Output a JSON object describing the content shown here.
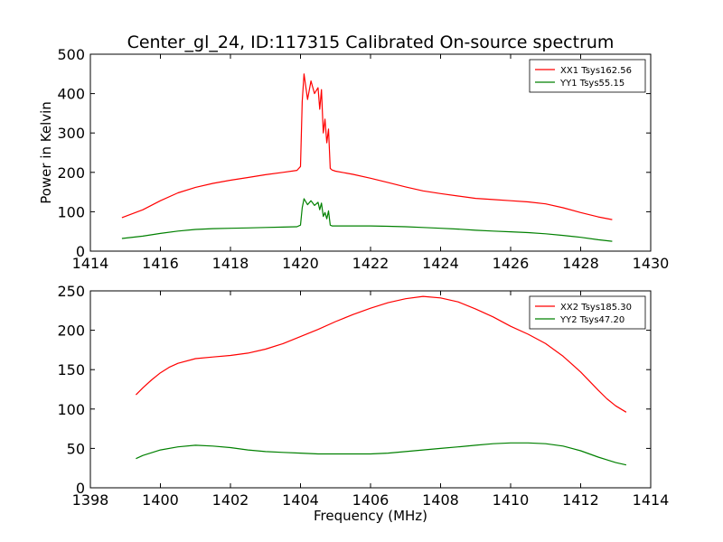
{
  "figure": {
    "title": "Center_gl_24, ID:117315 Calibrated On-source spectrum"
  },
  "chart_data": [
    {
      "type": "line",
      "title": "Center_gl_24, ID:117315 Calibrated On-source spectrum",
      "xlabel": "",
      "ylabel": "Power in Kelvin",
      "xlim": [
        1414,
        1430
      ],
      "ylim": [
        0,
        500
      ],
      "xticks": [
        "1414",
        "1416",
        "1418",
        "1420",
        "1422",
        "1424",
        "1426",
        "1428",
        "1430"
      ],
      "yticks": [
        "0",
        "100",
        "200",
        "300",
        "400",
        "500"
      ],
      "grid": false,
      "legend_position": "top-right",
      "series": [
        {
          "name": "XX1 Tsys162.56",
          "color": "#ff0000",
          "x": [
            1414.9,
            1415.5,
            1416.0,
            1416.5,
            1417.0,
            1417.5,
            1418.0,
            1418.5,
            1419.0,
            1419.5,
            1419.9,
            1420.0,
            1420.05,
            1420.1,
            1420.2,
            1420.3,
            1420.4,
            1420.5,
            1420.55,
            1420.6,
            1420.65,
            1420.7,
            1420.75,
            1420.8,
            1420.85,
            1420.9,
            1421.0,
            1421.5,
            1422.0,
            1422.5,
            1423.0,
            1423.5,
            1424.0,
            1424.5,
            1425.0,
            1425.5,
            1426.0,
            1426.5,
            1427.0,
            1427.5,
            1428.0,
            1428.5,
            1428.9
          ],
          "y": [
            85,
            105,
            128,
            148,
            162,
            172,
            180,
            187,
            194,
            200,
            205,
            215,
            380,
            450,
            385,
            432,
            400,
            415,
            360,
            410,
            300,
            335,
            275,
            310,
            210,
            206,
            203,
            195,
            185,
            174,
            163,
            153,
            146,
            140,
            134,
            131,
            128,
            125,
            120,
            110,
            98,
            87,
            80
          ]
        },
        {
          "name": "YY1 Tsys55.15",
          "color": "#008000",
          "x": [
            1414.9,
            1415.5,
            1416.0,
            1416.5,
            1417.0,
            1417.5,
            1418.0,
            1418.5,
            1419.0,
            1419.5,
            1419.9,
            1420.0,
            1420.05,
            1420.1,
            1420.2,
            1420.3,
            1420.4,
            1420.5,
            1420.55,
            1420.6,
            1420.65,
            1420.7,
            1420.75,
            1420.8,
            1420.85,
            1420.9,
            1421.0,
            1421.5,
            1422.0,
            1422.5,
            1423.0,
            1423.5,
            1424.0,
            1424.5,
            1425.0,
            1425.5,
            1426.0,
            1426.5,
            1427.0,
            1427.5,
            1428.0,
            1428.5,
            1428.9
          ],
          "y": [
            32,
            38,
            45,
            51,
            55,
            57,
            58,
            59,
            60,
            61,
            62,
            66,
            110,
            133,
            118,
            128,
            116,
            124,
            105,
            122,
            88,
            98,
            82,
            102,
            66,
            64,
            64,
            64,
            64,
            63,
            62,
            60,
            58,
            56,
            53,
            51,
            49,
            47,
            44,
            40,
            35,
            29,
            25
          ]
        }
      ]
    },
    {
      "type": "line",
      "title": "",
      "xlabel": "Frequency (MHz)",
      "ylabel": "",
      "xlim": [
        1398,
        1414
      ],
      "ylim": [
        0,
        250
      ],
      "xticks": [
        "1398",
        "1400",
        "1402",
        "1404",
        "1406",
        "1408",
        "1410",
        "1412",
        "1414"
      ],
      "yticks": [
        "0",
        "50",
        "100",
        "150",
        "200",
        "250"
      ],
      "grid": false,
      "legend_position": "top-right",
      "series": [
        {
          "name": "XX2 Tsys185.30",
          "color": "#ff0000",
          "x": [
            1399.3,
            1399.5,
            1399.75,
            1400.0,
            1400.25,
            1400.5,
            1401.0,
            1401.5,
            1402.0,
            1402.5,
            1403.0,
            1403.5,
            1404.0,
            1404.5,
            1405.0,
            1405.5,
            1406.0,
            1406.5,
            1407.0,
            1407.5,
            1408.0,
            1408.5,
            1409.0,
            1409.5,
            1410.0,
            1410.5,
            1411.0,
            1411.5,
            1412.0,
            1412.5,
            1412.75,
            1413.0,
            1413.3
          ],
          "y": [
            118,
            127,
            137,
            146,
            153,
            158,
            164,
            166,
            168,
            171,
            176,
            183,
            192,
            201,
            211,
            220,
            228,
            235,
            240,
            243,
            241,
            236,
            227,
            217,
            205,
            195,
            183,
            167,
            147,
            124,
            113,
            104,
            96
          ]
        },
        {
          "name": "YY2 Tsys47.20",
          "color": "#008000",
          "x": [
            1399.3,
            1399.5,
            1400.0,
            1400.5,
            1401.0,
            1401.5,
            1402.0,
            1402.5,
            1403.0,
            1403.5,
            1404.0,
            1404.5,
            1405.0,
            1405.5,
            1406.0,
            1406.5,
            1407.0,
            1407.5,
            1408.0,
            1408.5,
            1409.0,
            1409.5,
            1410.0,
            1410.5,
            1411.0,
            1411.5,
            1412.0,
            1412.5,
            1413.0,
            1413.3
          ],
          "y": [
            37,
            41,
            48,
            52,
            54,
            53,
            51,
            48,
            46,
            45,
            44,
            43,
            43,
            43,
            43,
            44,
            46,
            48,
            50,
            52,
            54,
            56,
            57,
            57,
            56,
            53,
            47,
            39,
            32,
            29
          ]
        }
      ]
    }
  ]
}
